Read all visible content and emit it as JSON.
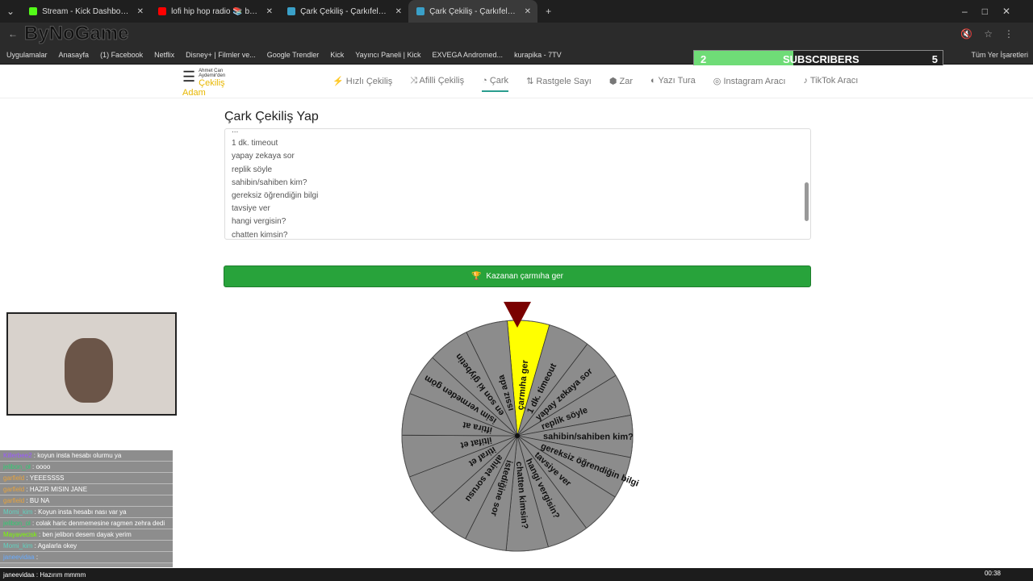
{
  "browser": {
    "tabs": [
      {
        "title": "Stream - Kick Dashboard",
        "color": "#53fc18"
      },
      {
        "title": "lofi hip hop radio 📚 beats",
        "color": "#ff0000"
      },
      {
        "title": "Çark Çekiliş - Çarkıfelek - Hızlı Ç",
        "color": "#3aa0c8"
      },
      {
        "title": "Çark Çekiliş - Çarkıfelek - H",
        "color": "#3aa0c8"
      }
    ],
    "overlay_logo": "ByNoGame",
    "bookmarks": [
      "Uygulamalar",
      "Anasayfa",
      "(1) Facebook",
      "Netflix",
      "Disney+ | Filmler ve...",
      "Google Trendler",
      "Kick",
      "Yayıncı Paneli | Kick",
      "EXVEGA Andromed...",
      "kurapika - 7TV",
      "Tüm Yer İşaretleri"
    ]
  },
  "subscribers": {
    "label": "SUBSCRIBERS",
    "current": "2",
    "goal": "5",
    "progress": 0.4
  },
  "site": {
    "brand_small": "Ahmet Can Aydemir'den",
    "brand": "Çekiliş Adam",
    "nav": [
      {
        "label": "Hızlı Çekiliş",
        "icon": "⚡"
      },
      {
        "label": "Afilli Çekiliş",
        "icon": "⤨"
      },
      {
        "label": "Çark",
        "icon": "◔",
        "active": true
      },
      {
        "label": "Rastgele Sayı",
        "icon": "⇅"
      },
      {
        "label": "Zar",
        "icon": "⬢"
      },
      {
        "label": "Yazı Tura",
        "icon": "◐"
      },
      {
        "label": "Instagram Aracı",
        "icon": "◎"
      },
      {
        "label": "TikTok Aracı",
        "icon": "♪"
      }
    ]
  },
  "main": {
    "title": "Çark Çekiliş Yap",
    "textarea_lines": [
      "...",
      "1 dk. timeout",
      "yapay zekaya sor",
      "replik söyle",
      "sahibin/sahiben kim?",
      "gereksiz öğrendiğin bilgi",
      "tavsiye ver",
      "hangi vergisin?",
      "chatten kimsin?"
    ],
    "button_label": "Kazanan çarmıha ger"
  },
  "wheel": {
    "segments": [
      "çarmıha ger",
      "1 dk. timeout",
      "yapay zekaya sor",
      "replik söyle",
      "sahibin/sahiben kim?",
      "gereksiz öğrendiğin bilgi",
      "tavsiye ver",
      "hangi vergisin?",
      "chatten kimsin?",
      "istediğine sor",
      "ahiret sorusu",
      "itiraf et",
      "iltifat et",
      "iftira at",
      "isim vermeden göm",
      "en son ki giybetin",
      "ıssız ada"
    ],
    "winner": "çarmıha ger",
    "winner_color": "#ffff00",
    "segment_color": "#8c8c8c",
    "pointer_color": "#7a0000"
  },
  "chat": [
    {
      "user": "Killerbee2",
      "msg": "koyun insta hesabı olurmu ya",
      "color": "#9b59ff"
    },
    {
      "user": "jelibon_ol",
      "msg": "oooo",
      "color": "#2ecc71"
    },
    {
      "user": "garfield",
      "msg": "YEEESSSS",
      "color": "#e6a23c"
    },
    {
      "user": "garfield",
      "msg": "HAZIR MISIN JANE",
      "color": "#e6a23c"
    },
    {
      "user": "garfield",
      "msg": "BU NA",
      "color": "#e6a23c"
    },
    {
      "user": "Momi_kim",
      "msg": "Koyun insta hesabı nası var ya",
      "color": "#5fd3c0"
    },
    {
      "user": "jelibon_ol",
      "msg": "colak haric denmemesine ragmen zehra dedi",
      "color": "#2ecc71"
    },
    {
      "user": "Mayavecisk",
      "msg": "ben jelibon desem dayak yerim",
      "color": "#7cfc00"
    },
    {
      "user": "Momi_kim",
      "msg": "Agalarla okey",
      "color": "#5fd3c0"
    },
    {
      "user": "janeevidaa",
      "msg": "",
      "color": "#66aaff"
    }
  ],
  "chat_bottom": "janeevidaa : Hazırım mmmm",
  "clock": "00:38"
}
